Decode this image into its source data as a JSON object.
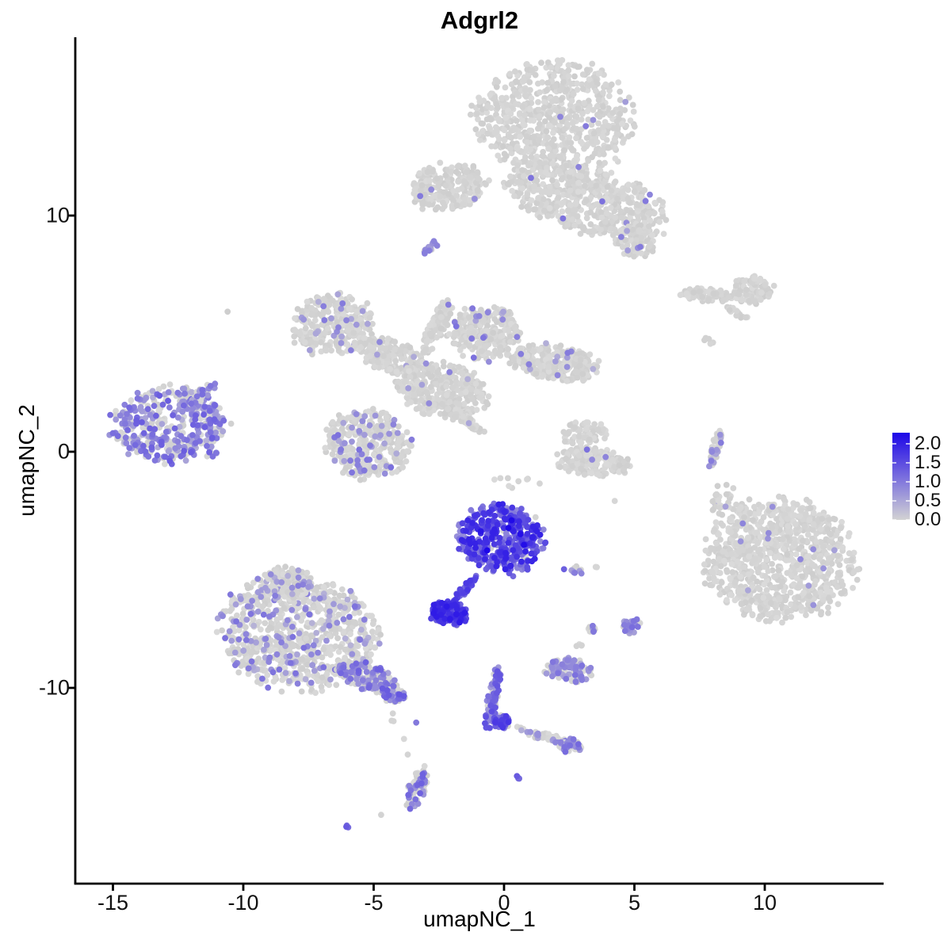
{
  "title": "Adgrl2",
  "chart_data": {
    "type": "scatter",
    "title": "Adgrl2",
    "xlabel": "umapNC_1",
    "ylabel": "umapNC_2",
    "xlim": [
      -16.4,
      14.6
    ],
    "ylim": [
      -18.3,
      17.5
    ],
    "x_ticks": [
      "-15",
      "-10",
      "-5",
      "0",
      "5",
      "10"
    ],
    "x_tick_values": [
      -15,
      -10,
      -5,
      0,
      5,
      10
    ],
    "y_ticks": [
      "10",
      "0",
      "-10"
    ],
    "y_tick_values": [
      10,
      0,
      -10
    ],
    "grid": false,
    "legend_position": "right",
    "legend": {
      "labels": [
        "2.0",
        "1.5",
        "1.0",
        "0.5",
        "0.0"
      ],
      "values": [
        2.0,
        1.5,
        1.0,
        0.5,
        0.0
      ],
      "vmax": 2.3,
      "low_color": "#d3d3d3",
      "high_color": "#1c05e8"
    },
    "point_radius": 3.9,
    "clusters": [
      {
        "name": "top-main-blob",
        "n": 720,
        "cx": 1.95,
        "cy": 14.1,
        "rx": 2.95,
        "ry": 2.5,
        "rot": 0,
        "frac": 0.01,
        "e0": 0.6,
        "e1": 1.2
      },
      {
        "name": "top-left-wing",
        "n": 230,
        "cx": -2.16,
        "cy": 11.24,
        "rx": 1.45,
        "ry": 1.0,
        "rot": 10,
        "frac": 0.02,
        "e0": 0.5,
        "e1": 1.0
      },
      {
        "name": "top-right-wing",
        "n": 540,
        "cx": 3.16,
        "cy": 10.67,
        "rx": 3.1,
        "ry": 1.35,
        "rot": -18,
        "frac": 0.02,
        "e0": 0.5,
        "e1": 1.1
      },
      {
        "name": "top-right-tip",
        "n": 90,
        "cx": 4.98,
        "cy": 8.89,
        "rx": 0.9,
        "ry": 0.6,
        "rot": -25,
        "frac": 0.06,
        "e0": 0.5,
        "e1": 1.0
      },
      {
        "name": "small-purple-streak",
        "n": 14,
        "cx": -2.77,
        "cy": 8.69,
        "rx": 0.42,
        "ry": 0.13,
        "rot": 42,
        "frac": 0.8,
        "e0": 0.5,
        "e1": 1.0
      },
      {
        "name": "lone-dot-left",
        "n": 1,
        "cx": -10.61,
        "cy": 5.97,
        "rx": 0.05,
        "ry": 0.05,
        "rot": 0,
        "frac": 0,
        "e0": 0,
        "e1": 0
      },
      {
        "name": "central-ul-lobe",
        "n": 300,
        "cx": -6.57,
        "cy": 5.37,
        "rx": 1.55,
        "ry": 1.25,
        "rot": 8,
        "frac": 0.1,
        "e0": 0.4,
        "e1": 1.0
      },
      {
        "name": "central-ul-arm",
        "n": 190,
        "cx": -4.44,
        "cy": 4.09,
        "rx": 1.4,
        "ry": 0.7,
        "rot": -22,
        "frac": 0.03,
        "e0": 0.4,
        "e1": 0.9
      },
      {
        "name": "central-top-arm",
        "n": 80,
        "cx": -2.55,
        "cy": 5.3,
        "rx": 1.3,
        "ry": 0.33,
        "rot": 68,
        "frac": 0.05,
        "e0": 0.4,
        "e1": 1.0
      },
      {
        "name": "central-ur-lobe",
        "n": 270,
        "cx": -0.73,
        "cy": 5.03,
        "rx": 1.35,
        "ry": 1.15,
        "rot": 0,
        "frac": 0.06,
        "e0": 0.4,
        "e1": 1.1
      },
      {
        "name": "central-right-band",
        "n": 300,
        "cx": 1.95,
        "cy": 3.79,
        "rx": 1.65,
        "ry": 0.75,
        "rot": -8,
        "frac": 0.03,
        "e0": 0.4,
        "e1": 1.0
      },
      {
        "name": "central-body",
        "n": 330,
        "cx": -2.31,
        "cy": 2.62,
        "rx": 1.75,
        "ry": 1.15,
        "rot": -15,
        "frac": 0.02,
        "e0": 0.4,
        "e1": 0.9
      },
      {
        "name": "central-ll-lobe",
        "n": 340,
        "cx": -5.2,
        "cy": 0.34,
        "rx": 1.6,
        "ry": 1.45,
        "rot": 0,
        "frac": 0.16,
        "e0": 0.4,
        "e1": 1.1
      },
      {
        "name": "central-diag-streak",
        "n": 55,
        "cx": -1.55,
        "cy": 1.41,
        "rx": 1.0,
        "ry": 0.17,
        "rot": -38,
        "frac": 0.05,
        "e0": 0.4,
        "e1": 0.8
      },
      {
        "name": "left-purple-cluster",
        "n": 440,
        "cx": -12.86,
        "cy": 1.14,
        "rx": 2.25,
        "ry": 1.6,
        "rot": -8,
        "frac": 0.62,
        "e0": 0.35,
        "e1": 1.35
      },
      {
        "name": "left-cluster-arm",
        "n": 28,
        "cx": -11.55,
        "cy": 2.45,
        "rx": 0.65,
        "ry": 0.22,
        "rot": 40,
        "frac": 0.6,
        "e0": 0.5,
        "e1": 1.2
      },
      {
        "name": "mid-right-top",
        "n": 70,
        "cx": 3.0,
        "cy": 0.75,
        "rx": 0.9,
        "ry": 0.55,
        "rot": 0,
        "frac": 0.02,
        "e0": 0.6,
        "e1": 1.0
      },
      {
        "name": "mid-right-blob",
        "n": 180,
        "cx": 3.34,
        "cy": -0.45,
        "rx": 1.4,
        "ry": 0.6,
        "rot": -6,
        "frac": 0.015,
        "e0": 0.8,
        "e1": 1.2
      },
      {
        "name": "banana-strip",
        "n": 60,
        "cx": 8.12,
        "cy": 0.23,
        "rx": 0.95,
        "ry": 0.17,
        "rot": 78,
        "frac": 0.3,
        "e0": 0.4,
        "e1": 1.0
      },
      {
        "name": "banana-trail",
        "n": 7,
        "cx": 8.18,
        "cy": -1.85,
        "rx": 0.15,
        "ry": 0.6,
        "rot": 0,
        "frac": 0.1,
        "e0": 0.5,
        "e1": 0.8
      },
      {
        "name": "far-right-big",
        "n": 980,
        "cx": 10.61,
        "cy": -4.6,
        "rx": 2.85,
        "ry": 2.55,
        "rot": 0,
        "frac": 0.012,
        "e0": 0.4,
        "e1": 0.9
      },
      {
        "name": "far-right-edge",
        "n": 30,
        "cx": 8.48,
        "cy": -2.35,
        "rx": 0.6,
        "ry": 0.9,
        "rot": 0,
        "frac": 0.08,
        "e0": 0.5,
        "e1": 1.0
      },
      {
        "name": "expression-main",
        "n": 430,
        "cx": -0.12,
        "cy": -3.69,
        "rx": 1.6,
        "ry": 1.45,
        "rot": -20,
        "frac": 0.96,
        "e0": 0.7,
        "e1": 2.0
      },
      {
        "name": "expression-main-dark",
        "n": 6,
        "cx": -0.2,
        "cy": -3.6,
        "rx": 1.0,
        "ry": 0.9,
        "rot": 0,
        "frac": 1,
        "e0": 2.1,
        "e1": 2.3
      },
      {
        "name": "expression-tail",
        "n": 45,
        "cx": -1.52,
        "cy": -5.84,
        "rx": 0.72,
        "ry": 0.14,
        "rot": 52,
        "frac": 0.95,
        "e0": 1.0,
        "e1": 1.8
      },
      {
        "name": "expression-bottom-blob",
        "n": 140,
        "cx": -2.13,
        "cy": -6.85,
        "rx": 0.72,
        "ry": 0.5,
        "rot": -10,
        "frac": 0.97,
        "e0": 1.2,
        "e1": 2.1
      },
      {
        "name": "expr-right-speck",
        "n": 1,
        "cx": 2.31,
        "cy": -4.97,
        "rx": 0.05,
        "ry": 0.05,
        "rot": 0,
        "frac": 1,
        "e0": 1.3,
        "e1": 1.3
      },
      {
        "name": "expr-right-blob",
        "n": 10,
        "cx": 2.86,
        "cy": -5.0,
        "rx": 0.3,
        "ry": 0.18,
        "rot": 0,
        "frac": 0.7,
        "e0": 0.4,
        "e1": 1.1
      },
      {
        "name": "expr-right-gray",
        "n": 2,
        "cx": 3.53,
        "cy": -4.9,
        "rx": 0.08,
        "ry": 0.06,
        "rot": 0,
        "frac": 0,
        "e0": 0,
        "e1": 0
      },
      {
        "name": "stray-ring",
        "n": 9,
        "cx": 0.73,
        "cy": -1.28,
        "rx": 1.3,
        "ry": 0.3,
        "rot": 0,
        "frac": 0.08,
        "e0": 0.5,
        "e1": 0.9
      },
      {
        "name": "stray-dot-right",
        "n": 1,
        "cx": 4.22,
        "cy": -2.08,
        "rx": 0.05,
        "ry": 0.05,
        "rot": 0,
        "frac": 0,
        "e0": 0,
        "e1": 0
      },
      {
        "name": "bottom-left-big",
        "n": 840,
        "cx": -7.93,
        "cy": -7.65,
        "rx": 3.0,
        "ry": 2.4,
        "rot": -5,
        "frac": 0.2,
        "e0": 0.35,
        "e1": 1.1
      },
      {
        "name": "bottom-left-knob",
        "n": 140,
        "cx": -8.33,
        "cy": -5.6,
        "rx": 0.95,
        "ry": 0.75,
        "rot": 0,
        "frac": 0.13,
        "e0": 0.4,
        "e1": 1.0
      },
      {
        "name": "bottom-left-tail",
        "n": 170,
        "cx": -5.29,
        "cy": -9.5,
        "rx": 1.25,
        "ry": 0.55,
        "rot": -24,
        "frac": 0.4,
        "e0": 0.5,
        "e1": 1.3
      },
      {
        "name": "bottom-left-tail-end",
        "n": 45,
        "cx": -4.26,
        "cy": -10.27,
        "rx": 0.5,
        "ry": 0.33,
        "rot": -20,
        "frac": 0.65,
        "e0": 0.6,
        "e1": 1.4
      },
      {
        "name": "bl-specks",
        "n": 3,
        "cx": -4.22,
        "cy": -11.28,
        "rx": 0.15,
        "ry": 0.25,
        "rot": 0,
        "frac": 0,
        "e0": 0,
        "e1": 0
      },
      {
        "name": "bl-purple-single",
        "n": 1,
        "cx": -3.34,
        "cy": -11.44,
        "rx": 0.05,
        "ry": 0.05,
        "rot": 0,
        "frac": 1,
        "e0": 1.0,
        "e1": 1.0
      },
      {
        "name": "bottom-vert-blob",
        "n": 65,
        "cx": -3.34,
        "cy": -14.19,
        "rx": 0.95,
        "ry": 0.33,
        "rot": 75,
        "frac": 0.42,
        "e0": 0.5,
        "e1": 1.3
      },
      {
        "name": "bottom-speck-1",
        "n": 1,
        "cx": -3.8,
        "cy": -12.19,
        "rx": 0.05,
        "ry": 0.05,
        "rot": 0,
        "frac": 0,
        "e0": 0,
        "e1": 0
      },
      {
        "name": "bottom-speck-2",
        "n": 1,
        "cx": -3.71,
        "cy": -12.85,
        "rx": 0.05,
        "ry": 0.05,
        "rot": 0,
        "frac": 0,
        "e0": 0,
        "e1": 0
      },
      {
        "name": "bottom-speck-3",
        "n": 1,
        "cx": -4.74,
        "cy": -15.37,
        "rx": 0.05,
        "ry": 0.05,
        "rot": 0,
        "frac": 0,
        "e0": 0,
        "e1": 0
      },
      {
        "name": "bottom-purple-pair",
        "n": 3,
        "cx": -6.05,
        "cy": -15.87,
        "rx": 0.14,
        "ry": 0.1,
        "rot": 30,
        "frac": 0.7,
        "e0": 0.9,
        "e1": 1.4
      },
      {
        "name": "bm-vert-streak",
        "n": 85,
        "cx": -0.43,
        "cy": -10.4,
        "rx": 1.45,
        "ry": 0.2,
        "rot": 81,
        "frac": 0.7,
        "e0": 0.6,
        "e1": 1.5
      },
      {
        "name": "bm-vert-dense",
        "n": 45,
        "cx": -0.09,
        "cy": -11.44,
        "rx": 0.33,
        "ry": 0.28,
        "rot": 0,
        "frac": 0.85,
        "e0": 0.9,
        "e1": 1.8
      },
      {
        "name": "bm-diag",
        "n": 55,
        "cx": 1.58,
        "cy": -12.05,
        "rx": 1.25,
        "ry": 0.18,
        "rot": -19,
        "frac": 0.35,
        "e0": 0.4,
        "e1": 1.0
      },
      {
        "name": "bm-diag-end",
        "n": 45,
        "cx": 2.58,
        "cy": -12.45,
        "rx": 0.45,
        "ry": 0.3,
        "rot": 0,
        "frac": 0.6,
        "e0": 0.5,
        "e1": 1.2
      },
      {
        "name": "bm-topright-blob",
        "n": 115,
        "cx": 2.46,
        "cy": -9.26,
        "rx": 0.9,
        "ry": 0.5,
        "rot": -10,
        "frac": 0.55,
        "e0": 0.45,
        "e1": 1.1
      },
      {
        "name": "bm-purple-pair",
        "n": 4,
        "cx": 0.58,
        "cy": -13.76,
        "rx": 0.15,
        "ry": 0.12,
        "rot": 0,
        "frac": 0.9,
        "e0": 1.0,
        "e1": 1.5
      },
      {
        "name": "right-strip",
        "n": 85,
        "cx": 7.72,
        "cy": 6.64,
        "rx": 1.05,
        "ry": 0.28,
        "rot": -4,
        "frac": 0,
        "e0": 0,
        "e1": 0
      },
      {
        "name": "right-blob",
        "n": 95,
        "cx": 9.54,
        "cy": 6.85,
        "rx": 0.78,
        "ry": 0.55,
        "rot": 0,
        "frac": 0,
        "e0": 0,
        "e1": 0
      },
      {
        "name": "right-streak",
        "n": 18,
        "cx": 8.94,
        "cy": 5.87,
        "rx": 0.48,
        "ry": 0.13,
        "rot": -33,
        "frac": 0,
        "e0": 0,
        "e1": 0
      },
      {
        "name": "right-specks",
        "n": 5,
        "cx": 7.78,
        "cy": 4.66,
        "rx": 0.25,
        "ry": 0.18,
        "rot": 0,
        "frac": 0,
        "e0": 0,
        "e1": 0
      },
      {
        "name": "br-blob-1",
        "n": 26,
        "cx": 4.89,
        "cy": -7.35,
        "rx": 0.38,
        "ry": 0.35,
        "rot": 0,
        "frac": 0.5,
        "e0": 0.5,
        "e1": 1.2
      },
      {
        "name": "br-blob-2",
        "n": 12,
        "cx": 3.4,
        "cy": -7.45,
        "rx": 0.18,
        "ry": 0.22,
        "rot": 0,
        "frac": 0.45,
        "e0": 0.5,
        "e1": 1.1
      },
      {
        "name": "br-specks",
        "n": 4,
        "cx": 2.8,
        "cy": -8.15,
        "rx": 0.2,
        "ry": 0.1,
        "rot": 0,
        "frac": 0,
        "e0": 0,
        "e1": 0
      }
    ]
  }
}
